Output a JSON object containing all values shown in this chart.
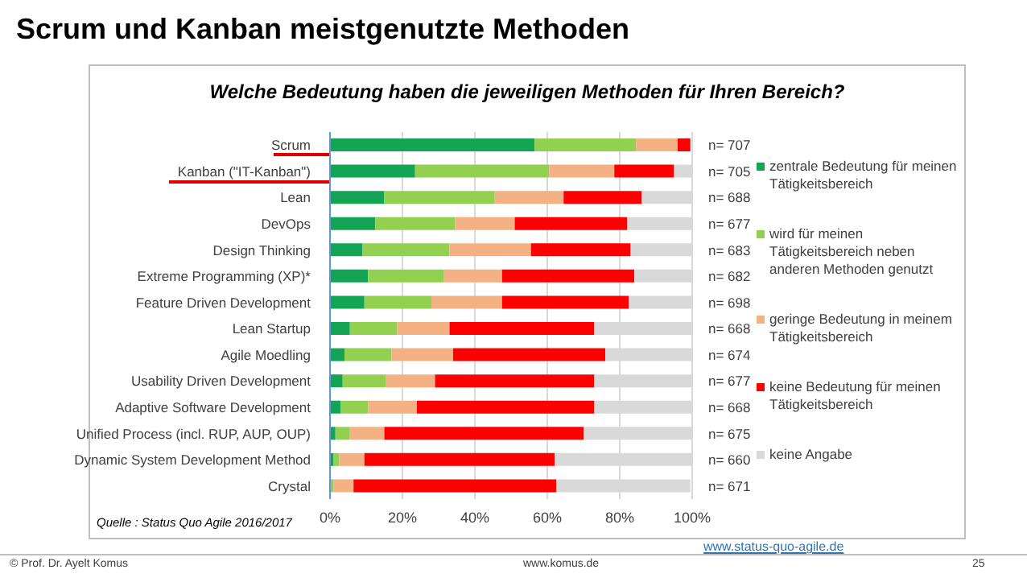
{
  "chart_data": {
    "type": "bar",
    "orientation": "horizontal",
    "stacked": true,
    "title": "Scrum und Kanban meistgenutzte Methoden",
    "subtitle": "Welche Bedeutung haben die jeweiligen Methoden für Ihren Bereich?",
    "categories": [
      "Scrum",
      "Kanban (\"IT-Kanban\")",
      "Lean",
      "DevOps",
      "Design Thinking",
      "Extreme Programming (XP)*",
      "Feature Driven Development",
      "Lean Startup",
      "Agile Moedling",
      "Usability Driven Development",
      "Adaptive Software Development",
      "Unified Process (incl. RUP, AUP, OUP)",
      "Dynamic System Development Method",
      "Crystal"
    ],
    "series": [
      {
        "name": "zentrale Bedeutung für meinen Tätigkeitsbereich",
        "color": "#13a454",
        "values": [
          56.5,
          23.5,
          15,
          12.5,
          9,
          10.5,
          9.5,
          5.5,
          4,
          3.5,
          3,
          1.5,
          1,
          null
        ]
      },
      {
        "name": "wird für meinen Tätigkeitsbereich neben anderen Methoden genutzt",
        "color": "#92d050",
        "values": [
          28,
          37,
          30.5,
          22,
          24,
          21,
          18.5,
          13,
          13,
          12,
          7.5,
          4,
          1.5,
          1
        ]
      },
      {
        "name": "geringe Bedeutung in meinem Tätigkeitsbereich",
        "color": "#f4b183",
        "values": [
          11.5,
          18,
          19,
          16.5,
          22.5,
          16,
          19.5,
          14.5,
          17,
          13.5,
          13.5,
          9.5,
          7,
          5.5
        ]
      },
      {
        "name": "keine Bedeutung für meinen Tätigkeitsbereich",
        "color": "#ff0000",
        "values": [
          3.5,
          16.5,
          21.5,
          31,
          27.5,
          36.5,
          35,
          40,
          42,
          44,
          49,
          55,
          52.5,
          56
        ]
      },
      {
        "name": "keine Angabe",
        "color": "#d9d9d9",
        "values": [
          null,
          5,
          14,
          18,
          17,
          16,
          17.5,
          27,
          24,
          27,
          27,
          30,
          38,
          37
        ]
      }
    ],
    "xlim": [
      0,
      100
    ],
    "xticks": [
      {
        "value": 0,
        "label": "0%"
      },
      {
        "value": 20,
        "label": "20%"
      },
      {
        "value": 40,
        "label": "40%"
      },
      {
        "value": 60,
        "label": "60%"
      },
      {
        "value": 80,
        "label": "80%"
      },
      {
        "value": 100,
        "label": "100%"
      }
    ],
    "grid": "x",
    "legend": "right",
    "annotations": [
      "n= 707",
      "n= 705",
      "n= 688",
      "n= 677",
      "n= 683",
      "n= 682",
      "n= 698",
      "n= 668",
      "n= 674",
      "n= 677",
      "n= 668",
      "n= 675",
      "n= 660",
      "n= 671",
      "Quelle : Status Quo Agile 2016/2017",
      "www.status-quo-agile.de",
      "© Prof. Dr. Ayelt Komus",
      "www.komus.de",
      "25"
    ]
  }
}
